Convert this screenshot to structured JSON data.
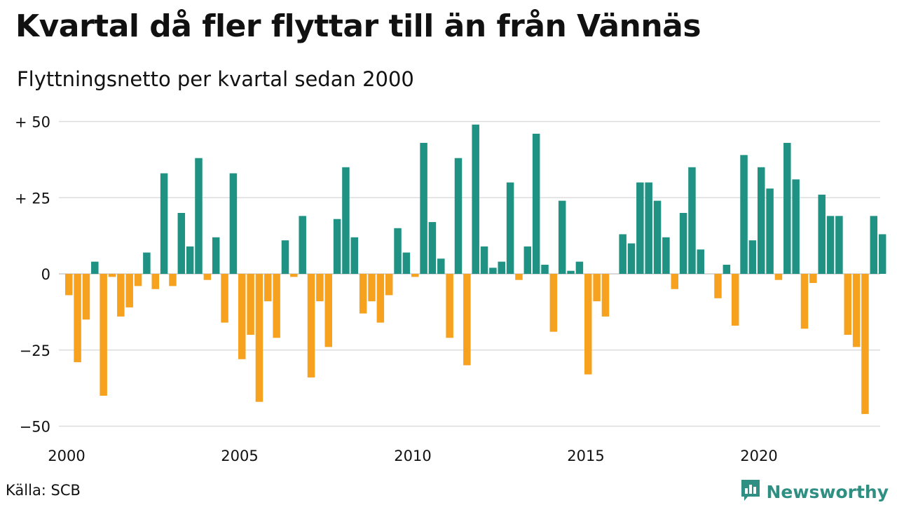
{
  "header": {
    "title": "Kvartal då fler flyttar till än från Vännäs",
    "subtitle": "Flyttningsnetto per kvartal sedan 2000"
  },
  "footer": {
    "source": "Källa: SCB",
    "brand": "Newsworthy"
  },
  "colors": {
    "positive": "#1f9283",
    "negative": "#f6a21e",
    "grid": "#dddddd",
    "brand": "#2f8f83"
  },
  "chart_data": {
    "type": "bar",
    "title": "Kvartal då fler flyttar till än från Vännäs",
    "subtitle": "Flyttningsnetto per kvartal sedan 2000",
    "xlabel": "",
    "ylabel": "",
    "ylim": [
      -55,
      50
    ],
    "grid": true,
    "yticks": [
      {
        "value": 50,
        "label": "+ 50"
      },
      {
        "value": 25,
        "label": "+ 25"
      },
      {
        "value": 0,
        "label": "0"
      },
      {
        "value": -25,
        "label": "−25"
      },
      {
        "value": -50,
        "label": "−50"
      }
    ],
    "xticks": [
      "2000",
      "2005",
      "2010",
      "2015",
      "2020"
    ],
    "start_year": 2000,
    "values": [
      -7,
      -29,
      -15,
      4,
      -40,
      -1,
      -14,
      -11,
      -4,
      7,
      -5,
      33,
      -4,
      20,
      9,
      38,
      -2,
      12,
      -16,
      33,
      -28,
      -20,
      -42,
      -9,
      -21,
      11,
      -1,
      19,
      -34,
      -9,
      -24,
      18,
      35,
      12,
      -13,
      -9,
      -16,
      -7,
      15,
      7,
      -1,
      43,
      17,
      5,
      -21,
      38,
      -30,
      49,
      9,
      2,
      4,
      30,
      -2,
      9,
      46,
      3,
      -19,
      24,
      1,
      4,
      -33,
      -9,
      -14,
      0,
      13,
      10,
      30,
      30,
      24,
      12,
      -5,
      20,
      35,
      8,
      0,
      -8,
      3,
      -17,
      39,
      11,
      35,
      28,
      -2,
      43,
      31,
      -18,
      -3,
      26,
      19,
      19,
      -20,
      -24,
      -46,
      19,
      13
    ]
  }
}
